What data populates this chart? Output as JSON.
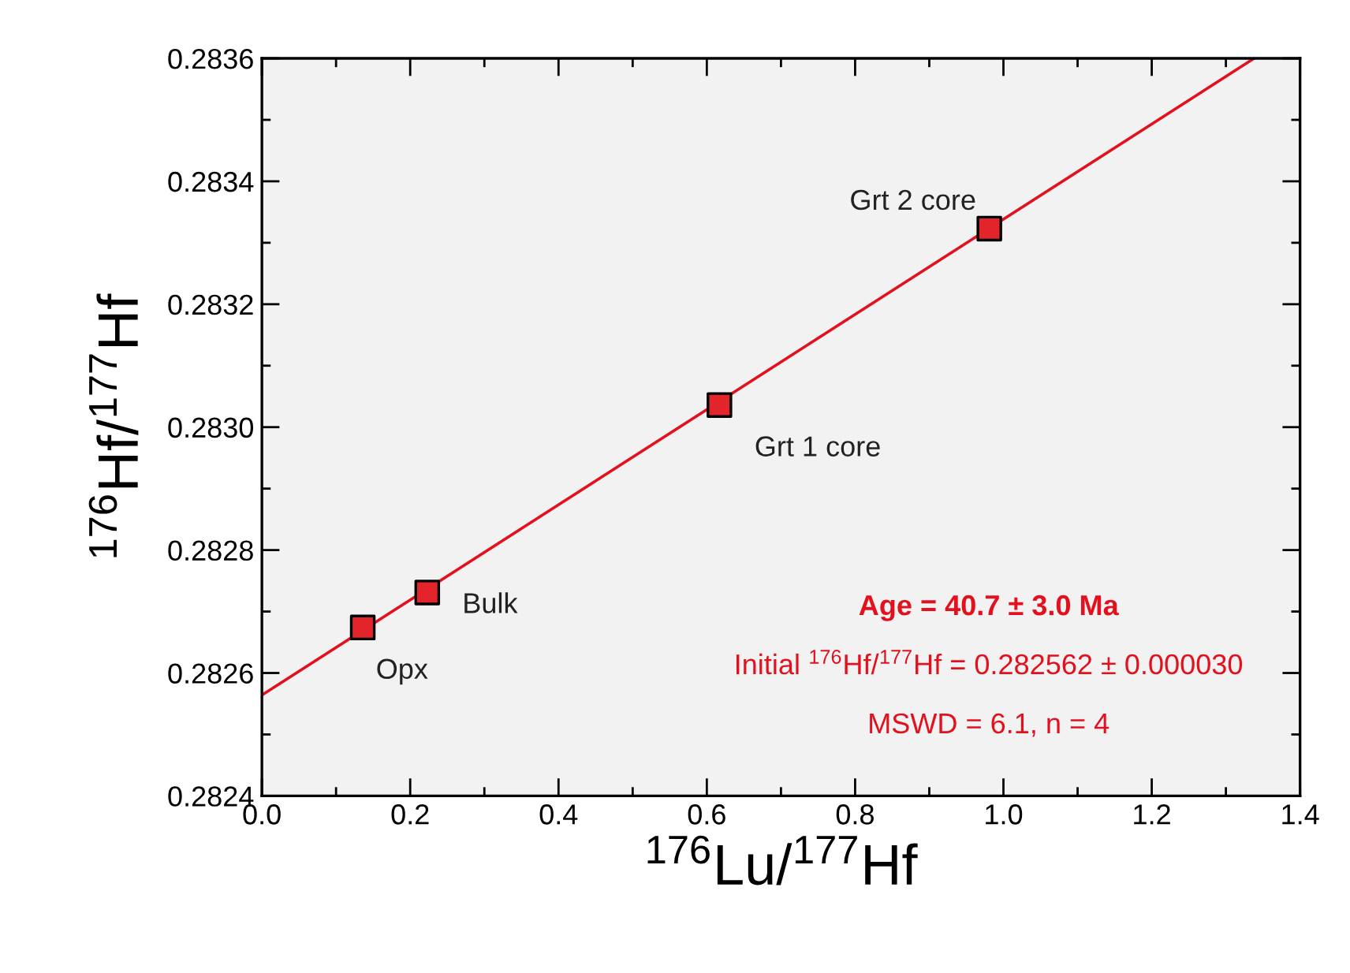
{
  "chart_data": {
    "type": "scatter",
    "xlabel": "$^{176}$Lu/$^{177}$Hf",
    "ylabel": "$^{176}$Hf/$^{177}$Hf",
    "series": [
      {
        "type": "line",
        "color": "#e3101e",
        "x": [
          0,
          1.338
        ],
        "values": [
          0.282564,
          0.2836
        ]
      },
      {
        "color": "#e3242b",
        "marker": "square",
        "x": [
          0.136,
          0.223,
          0.617,
          0.981
        ],
        "values": [
          0.282674,
          0.282731,
          0.283036,
          0.283323
        ]
      }
    ],
    "xlim": [
      0,
      1.4
    ],
    "xticks": [
      {
        "value": 0,
        "label": "0.0"
      },
      0.2,
      0.4,
      0.6,
      0.8,
      {
        "value": 1,
        "label": "1.0"
      },
      1.2,
      1.4
    ],
    "ylim": [
      0.2824,
      0.2836
    ],
    "yticks": [
      0.2824,
      0.2826,
      0.2828,
      {
        "value": 0.283,
        "label": "0.2830"
      },
      0.2832,
      0.2834,
      0.2836
    ],
    "annotations": [
      {
        "text": "Opx",
        "x": 0.136,
        "y": 0.282674
      },
      {
        "text": "Bulk",
        "x": 0.223,
        "y": 0.282731
      },
      {
        "text": "Grt 1 core",
        "x": 0.617,
        "y": 0.283036
      },
      {
        "text": "Grt 2 core",
        "x": 0.981,
        "y": 0.283323
      },
      "Age = 40.7 ± 3.0 Ma",
      "Initial $^{176}$Hf/$^{177}$Hf = 0.282562 ± 0.000030",
      "MSWD = 6.1, n = 4"
    ],
    "grid": false,
    "legend": false
  }
}
